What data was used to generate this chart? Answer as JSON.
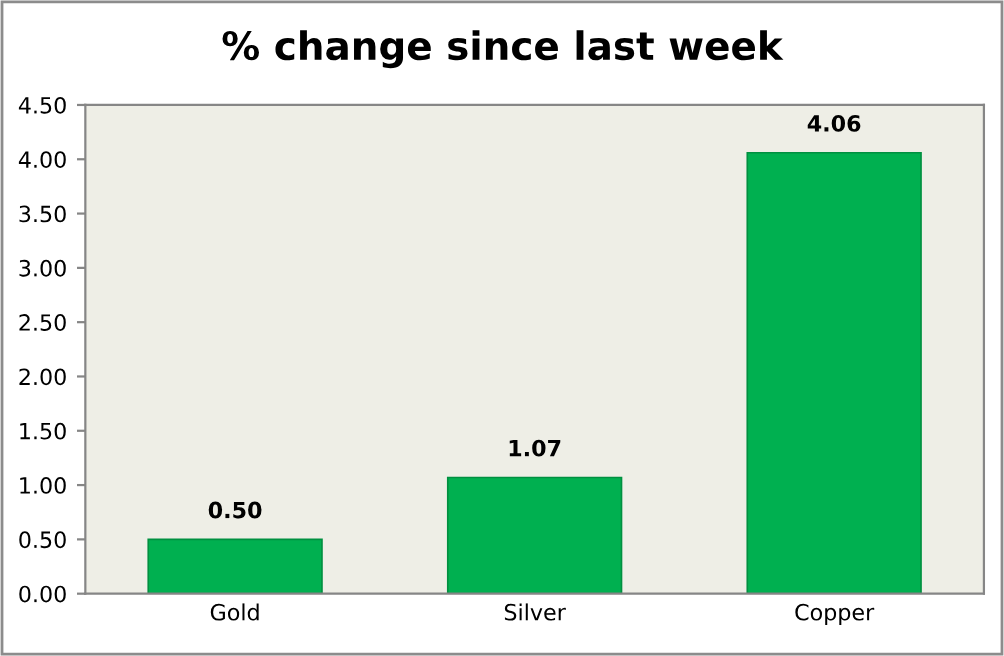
{
  "chart_data": {
    "type": "bar",
    "title": "% change since last week",
    "categories": [
      "Gold",
      "Silver",
      "Copper"
    ],
    "values": [
      0.5,
      1.07,
      4.06
    ],
    "color": "#00b050",
    "value_labels": [
      "0.50",
      "1.07",
      "4.06"
    ],
    "ylim": [
      0,
      4.5
    ],
    "yticks": [
      {
        "value": 0,
        "label": "0.00"
      },
      {
        "value": 0.5,
        "label": "0.50"
      },
      {
        "value": 1,
        "label": "1.00"
      },
      {
        "value": 1.5,
        "label": "1.50"
      },
      {
        "value": 2,
        "label": "2.00"
      },
      {
        "value": 2.5,
        "label": "2.50"
      },
      {
        "value": 3,
        "label": "3.00"
      },
      {
        "value": 3.5,
        "label": "3.50"
      },
      {
        "value": 4,
        "label": "4.00"
      },
      {
        "value": 4.5,
        "label": "4.50"
      }
    ],
    "grid": false,
    "legend": false
  }
}
